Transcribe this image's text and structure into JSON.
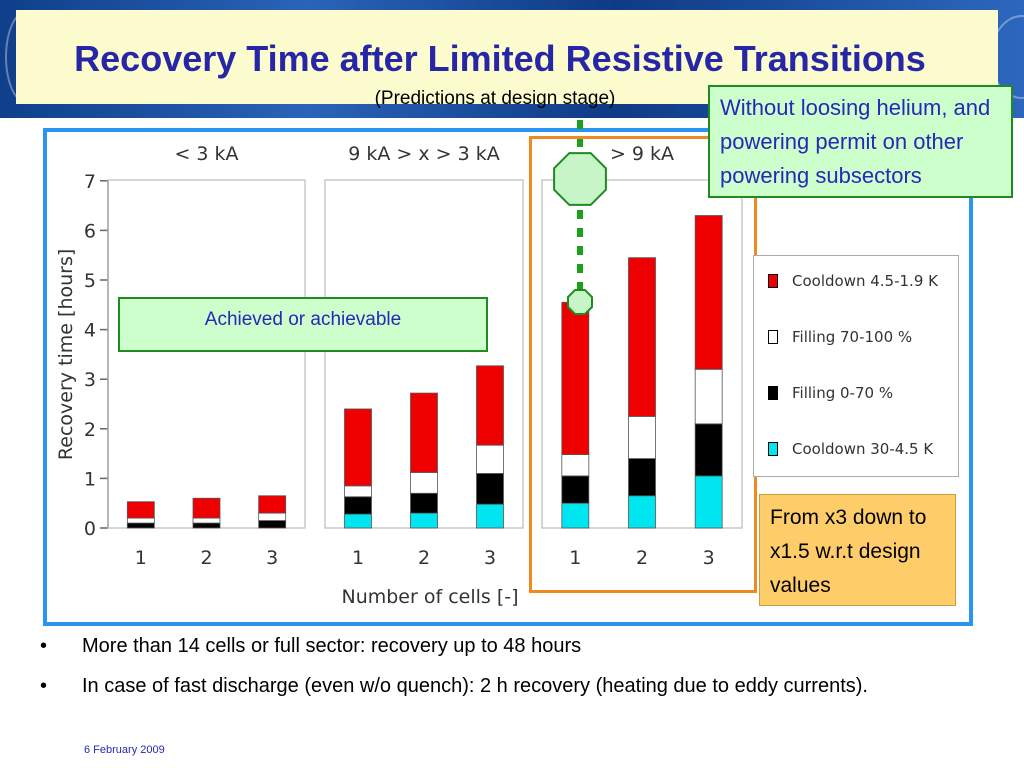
{
  "slide": {
    "title": "Recovery Time after Limited Resistive Transitions",
    "subtitle": "(Predictions at design stage)",
    "footer_date": "6 February 2009"
  },
  "callouts": {
    "helium": "Without loosing helium, and powering permit on other powering subsectors",
    "achieved": "Achieved or achievable",
    "design": "From x3 down to x1.5 w.r.t design values"
  },
  "bullets": [
    "More than 14 cells or full sector: recovery up to 48 hours",
    "In case of fast discharge (even w/o quench): 2 h recovery (heating due to eddy currents)."
  ],
  "bullet_glyph": "•",
  "legend_items": [
    {
      "label": "Cooldown 4.5-1.9 K",
      "color": "#ee0000"
    },
    {
      "label": "Filling 70-100 %",
      "color": "#ffffff"
    },
    {
      "label": "Filling 0-70 %",
      "color": "#000000"
    },
    {
      "label": "Cooldown 30-4.5 K",
      "color": "#00e6f0"
    }
  ],
  "colors": {
    "title": "#2626a6",
    "frame": "#2a95f0",
    "highlight": "#ef8a1e",
    "callout_green": "#ccffcc",
    "callout_orange": "#fecd6a",
    "octagon": "#c7f5c7",
    "octagon_stroke": "#1f8a1f"
  },
  "chart_data": {
    "type": "bar",
    "stacked": true,
    "ylabel": "Recovery time [hours]",
    "xlabel": "Number of cells [-]",
    "ylim": [
      0,
      7
    ],
    "yticks": [
      "0",
      "1",
      "2",
      "3",
      "4",
      "5",
      "6",
      "7"
    ],
    "grid": false,
    "legend_position": "right",
    "stack_order": [
      "Cooldown 30-4.5 K",
      "Filling 0-70 %",
      "Filling 70-100 %",
      "Cooldown 4.5-1.9 K"
    ],
    "panels": [
      {
        "label": "< 3 kA",
        "categories": [
          "1",
          "2",
          "3"
        ],
        "series": [
          {
            "name": "Cooldown 30-4.5 K",
            "values": [
              0.0,
              0.0,
              0.0
            ]
          },
          {
            "name": "Filling 0-70 %",
            "values": [
              0.1,
              0.1,
              0.15
            ]
          },
          {
            "name": "Filling 70-100 %",
            "values": [
              0.1,
              0.1,
              0.15
            ]
          },
          {
            "name": "Cooldown 4.5-1.9 K",
            "values": [
              0.33,
              0.4,
              0.35
            ]
          }
        ]
      },
      {
        "label": "9 kA > x > 3 kA",
        "categories": [
          "1",
          "2",
          "3"
        ],
        "series": [
          {
            "name": "Cooldown 30-4.5 K",
            "values": [
              0.28,
              0.3,
              0.48
            ]
          },
          {
            "name": "Filling 0-70 %",
            "values": [
              0.35,
              0.4,
              0.62
            ]
          },
          {
            "name": "Filling 70-100 %",
            "values": [
              0.22,
              0.42,
              0.57
            ]
          },
          {
            "name": "Cooldown 4.5-1.9 K",
            "values": [
              1.55,
              1.6,
              1.6
            ]
          }
        ]
      },
      {
        "label": "> 9 kA",
        "categories": [
          "1",
          "2",
          "3"
        ],
        "series": [
          {
            "name": "Cooldown 30-4.5 K",
            "values": [
              0.5,
              0.65,
              1.05
            ]
          },
          {
            "name": "Filling 0-70 %",
            "values": [
              0.55,
              0.75,
              1.05
            ]
          },
          {
            "name": "Filling 70-100 %",
            "values": [
              0.43,
              0.85,
              1.1
            ]
          },
          {
            "name": "Cooldown 4.5-1.9 K",
            "values": [
              3.07,
              3.2,
              3.1
            ]
          }
        ]
      }
    ]
  }
}
